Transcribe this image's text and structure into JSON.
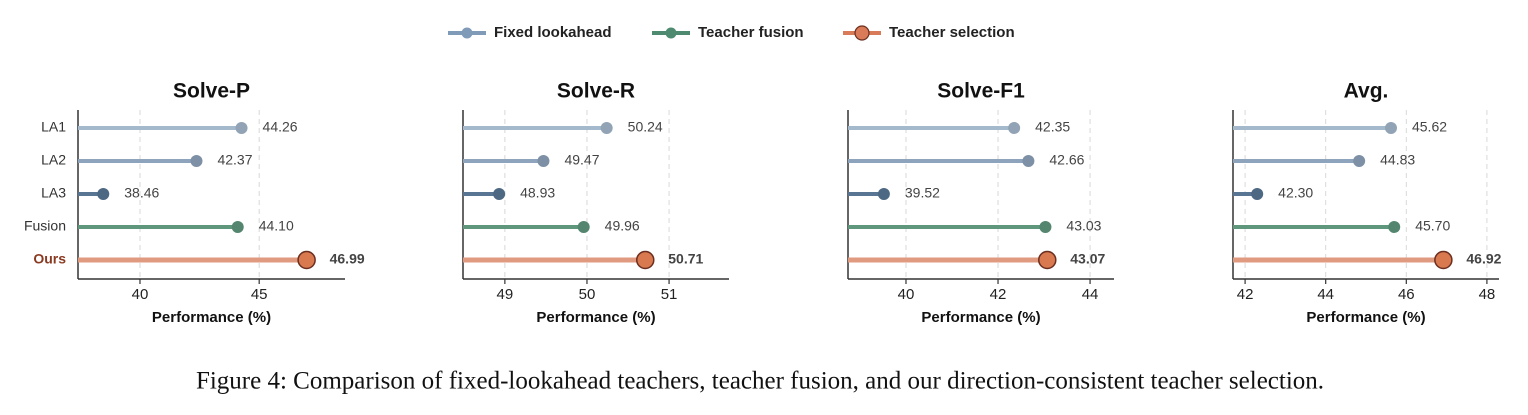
{
  "legend": [
    {
      "name": "Fixed lookahead",
      "color": "#7f9bb8"
    },
    {
      "name": "Teacher fusion",
      "color": "#4e8a70"
    },
    {
      "name": "Teacher selection",
      "color": "#d97b58"
    }
  ],
  "chart_data": [
    {
      "type": "lollipop",
      "title": "Solve-P",
      "xlabel": "Performance (%)",
      "categories": [
        "LA1",
        "LA2",
        "LA3",
        "Fusion",
        "Ours"
      ],
      "values": [
        44.26,
        42.37,
        38.46,
        44.1,
        46.99
      ],
      "value_labels": [
        "44.26",
        "42.37",
        "38.46",
        "44.10",
        "46.99"
      ],
      "colors": [
        "#a5b9cd",
        "#8ea4bd",
        "#587694",
        "#5f977d",
        "#e09a80"
      ],
      "xlim": [
        37.4,
        48.6
      ],
      "xticks": [
        40,
        45
      ],
      "grid": true
    },
    {
      "type": "lollipop",
      "title": "Solve-R",
      "xlabel": "Performance (%)",
      "values": [
        50.24,
        49.47,
        48.93,
        49.96,
        50.71
      ],
      "value_labels": [
        "50.24",
        "49.47",
        "48.93",
        "49.96",
        "50.71"
      ],
      "colors": [
        "#a5b9cd",
        "#8ea4bd",
        "#587694",
        "#5f977d",
        "#e09a80"
      ],
      "xlim": [
        48.49,
        51.73
      ],
      "xticks": [
        49,
        50,
        51
      ],
      "grid": true
    },
    {
      "type": "lollipop",
      "title": "Solve-F1",
      "xlabel": "Performance (%)",
      "values": [
        42.35,
        42.66,
        39.52,
        43.03,
        43.07
      ],
      "value_labels": [
        "42.35",
        "42.66",
        "39.52",
        "43.03",
        "43.07"
      ],
      "colors": [
        "#a5b9cd",
        "#8ea4bd",
        "#587694",
        "#5f977d",
        "#e09a80"
      ],
      "xlim": [
        38.74,
        44.52
      ],
      "xticks": [
        40,
        42,
        44
      ],
      "grid": true
    },
    {
      "type": "lollipop",
      "title": "Avg.",
      "xlabel": "Performance (%)",
      "values": [
        45.62,
        44.83,
        42.3,
        45.7,
        46.92
      ],
      "value_labels": [
        "45.62",
        "44.83",
        "42.30",
        "45.70",
        "46.92"
      ],
      "colors": [
        "#a5b9cd",
        "#8ea4bd",
        "#587694",
        "#5f977d",
        "#e09a80"
      ],
      "xlim": [
        41.7,
        48.3
      ],
      "xticks": [
        42,
        44,
        46,
        48
      ],
      "grid": true
    }
  ],
  "caption": "Figure 4: Comparison of fixed-lookahead teachers, teacher fusion, and our direction-consistent teacher selection."
}
